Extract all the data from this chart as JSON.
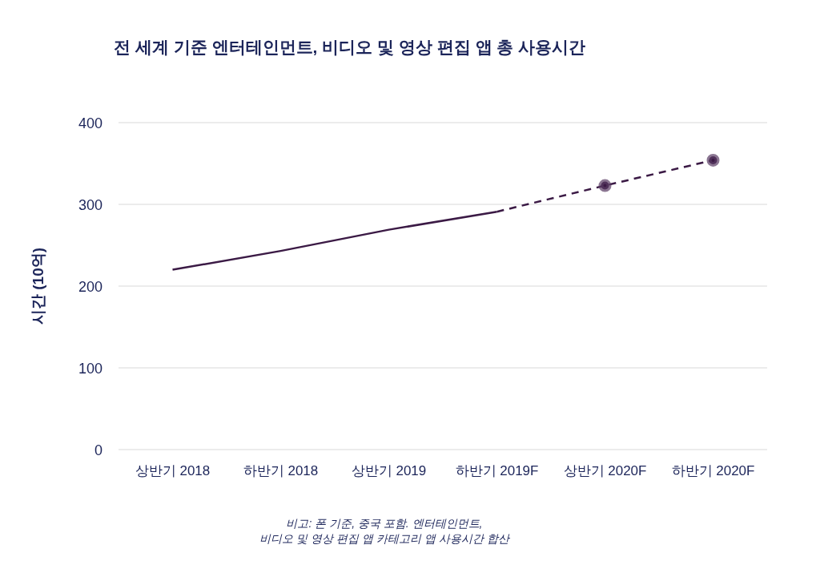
{
  "chart_data": {
    "type": "line",
    "title": "전 세계 기준 엔터테인먼트, 비디오 및 영상 편집 앱 총 사용시간",
    "ylabel": "시간 (10억)",
    "categories": [
      "상반기 2018",
      "하반기 2018",
      "상반기 2019",
      "하반기 2019F",
      "상반기 2020F",
      "하반기 2020F"
    ],
    "series": [
      {
        "color": "#3b1a45",
        "line_style": "solid",
        "marker": "none",
        "values": [
          220,
          243,
          269,
          291,
          null,
          null
        ]
      },
      {
        "color": "#3b1a45",
        "line_style": "dashed",
        "marker": "none",
        "values": [
          null,
          null,
          null,
          291,
          323,
          354
        ]
      },
      {
        "type": "scatter",
        "color": "#3b1a45",
        "values": [
          null,
          null,
          null,
          null,
          323,
          354
        ]
      }
    ],
    "ylim": [
      0,
      400
    ],
    "yticks": [
      0,
      100,
      200,
      300,
      400
    ],
    "grid": "y",
    "annotations": [
      "비고: 폰 기준, 중국 포함. 엔터테인먼트,\n비디오 및 영상 편집 앱 카테고리 앱 사용시간 합산"
    ]
  }
}
